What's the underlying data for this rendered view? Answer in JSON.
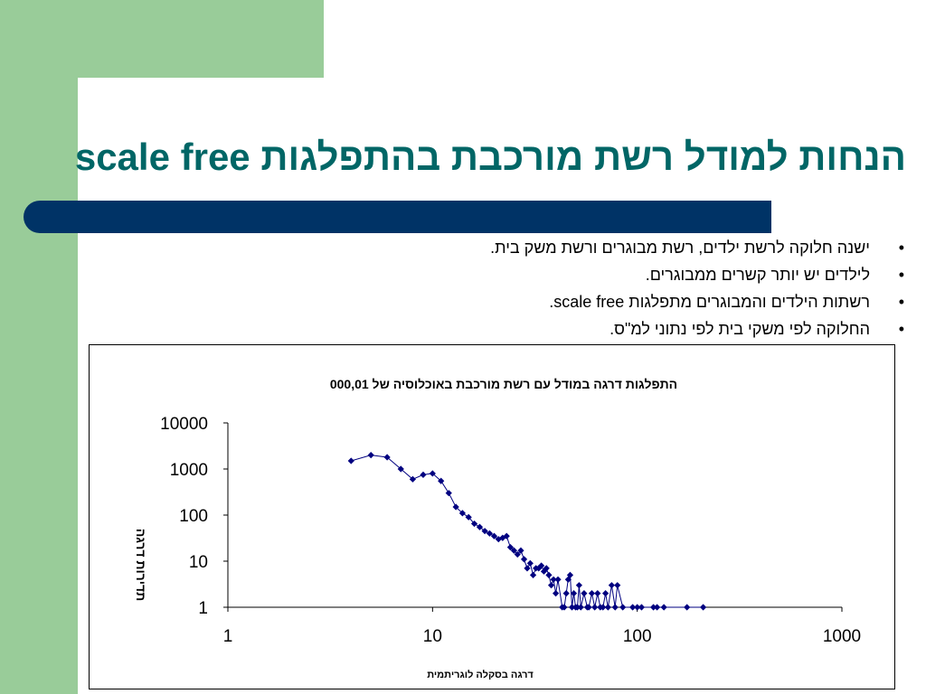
{
  "slide": {
    "title": "הנחות למודל רשת מורכבת בהתפלגות scale free",
    "bullet_symbol": "•",
    "bullets": [
      "ישנה חלוקה לרשת ילדים, רשת מבוגרים ורשת משק בית.",
      "לילדים יש יותר קשרים ממבוגרים.",
      "רשתות הילדים והמבוגרים מתפלגות scale free.",
      "החלוקה לפי משקי בית לפי נתוני למ\"ס."
    ]
  },
  "colors": {
    "green": "#99cc99",
    "title": "#006666",
    "bar": "#003366",
    "series": "#000080"
  },
  "chart_data": {
    "type": "scatter",
    "title": "התפלגות דרגה במודל עם רשת מורכבת באוכלוסיה של 000,01",
    "xlabel": "דרגה בסקלה לוגריתמית",
    "ylabel": "תדירות  דרגה",
    "x_scale": "log",
    "y_scale": "log",
    "xlim": [
      1,
      1000
    ],
    "ylim": [
      1,
      10000
    ],
    "x_ticks": [
      "1",
      "10",
      "100",
      "1000"
    ],
    "y_ticks": [
      "1",
      "10",
      "100",
      "1000",
      "10000"
    ],
    "grid": false,
    "legend": "none",
    "series": [
      {
        "marker": "diamond",
        "points": [
          [
            4,
            1500
          ],
          [
            5,
            2000
          ],
          [
            6,
            1800
          ],
          [
            7,
            1000
          ],
          [
            8,
            600
          ],
          [
            9,
            750
          ],
          [
            10,
            800
          ],
          [
            11,
            550
          ],
          [
            12,
            300
          ],
          [
            13,
            150
          ],
          [
            14,
            110
          ],
          [
            15,
            90
          ],
          [
            16,
            65
          ],
          [
            17,
            55
          ],
          [
            18,
            45
          ],
          [
            19,
            40
          ],
          [
            20,
            35
          ],
          [
            21,
            30
          ],
          [
            22,
            32
          ],
          [
            23,
            35
          ],
          [
            24,
            20
          ],
          [
            25,
            17
          ],
          [
            26,
            14
          ],
          [
            27,
            17
          ],
          [
            28,
            11
          ],
          [
            29,
            7
          ],
          [
            30,
            9
          ],
          [
            31,
            5
          ],
          [
            32,
            7
          ],
          [
            33,
            7
          ],
          [
            34,
            8
          ],
          [
            35,
            6
          ],
          [
            36,
            7
          ],
          [
            37,
            5
          ],
          [
            38,
            3
          ],
          [
            39,
            4
          ],
          [
            40,
            2
          ],
          [
            41,
            4
          ],
          [
            43,
            1
          ],
          [
            44,
            1
          ],
          [
            45,
            2
          ],
          [
            46,
            4
          ],
          [
            47,
            5
          ],
          [
            48,
            1
          ],
          [
            49,
            2
          ],
          [
            50,
            1
          ],
          [
            51,
            1
          ],
          [
            52,
            3
          ],
          [
            53,
            1
          ],
          [
            55,
            2
          ],
          [
            57,
            1
          ],
          [
            58,
            1
          ],
          [
            60,
            2
          ],
          [
            62,
            1
          ],
          [
            64,
            2
          ],
          [
            66,
            1
          ],
          [
            68,
            1
          ],
          [
            70,
            2
          ],
          [
            72,
            1
          ],
          [
            75,
            3
          ],
          [
            78,
            1
          ],
          [
            80,
            3
          ],
          [
            85,
            1
          ],
          [
            95,
            1
          ],
          [
            100,
            1
          ],
          [
            105,
            1
          ],
          [
            120,
            1
          ],
          [
            125,
            1
          ],
          [
            135,
            1
          ],
          [
            175,
            1
          ],
          [
            210,
            1
          ]
        ]
      }
    ]
  }
}
